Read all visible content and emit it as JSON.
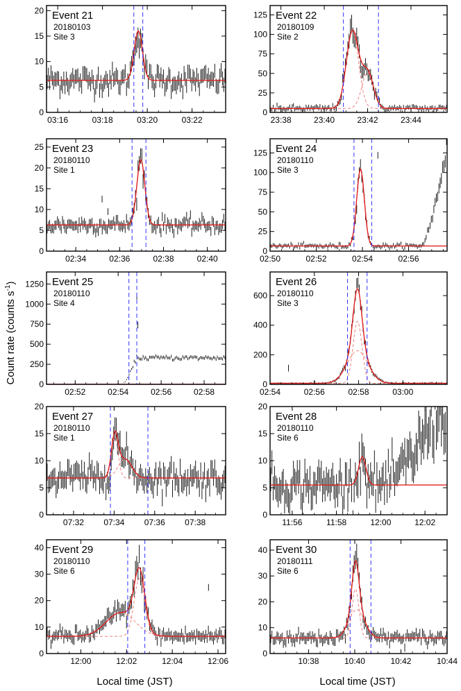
{
  "figure": {
    "ylabel": "Count rate (counts s",
    "ylabel_sup": "-1",
    "xlabel": "Local time (JST)"
  },
  "colors": {
    "data": "#000000",
    "fit": "#e02020",
    "component": "#f08080",
    "window": "#3030ff"
  },
  "chart_data": [
    {
      "type": "line",
      "event": "Event 21",
      "date": "20180103",
      "site": "Site 3",
      "xrange": [
        "03:15:30",
        "03:23:30"
      ],
      "xticks": [
        "03:16",
        "03:18",
        "03:20",
        "03:22"
      ],
      "ylim": [
        0,
        21
      ],
      "yticks": [
        0,
        5,
        10,
        15,
        20
      ],
      "baseline": 6.3,
      "noise": 1.4,
      "windows": [
        "03:19:24",
        "03:19:48"
      ],
      "peaks": [
        {
          "center": "03:19:36",
          "amplitude": 9.7,
          "sigma_s": 11
        }
      ],
      "outliers": []
    },
    {
      "type": "line",
      "event": "Event 22",
      "date": "20180109",
      "site": "Site 2",
      "xrange": [
        "23:37:30",
        "23:45:40"
      ],
      "xticks": [
        "23:38",
        "23:40",
        "23:42",
        "23:44"
      ],
      "ylim": [
        0,
        137
      ],
      "yticks": [
        0,
        25,
        50,
        75,
        100,
        125
      ],
      "baseline": 5,
      "noise": 2.5,
      "windows": [
        "23:40:53",
        "23:42:30"
      ],
      "peaks": [
        {
          "center": "23:41:18",
          "amplitude": 99,
          "sigma_s": 17
        },
        {
          "center": "23:42:00",
          "amplitude": 46,
          "sigma_s": 16
        }
      ],
      "outliers": []
    },
    {
      "type": "line",
      "event": "Event 23",
      "date": "20180110",
      "site": "Site 1",
      "xrange": [
        "02:32:40",
        "02:40:50"
      ],
      "xticks": [
        "02:34",
        "02:36",
        "02:38",
        "02:40"
      ],
      "ylim": [
        0,
        27
      ],
      "yticks": [
        0,
        5,
        10,
        15,
        20,
        25
      ],
      "baseline": 6.3,
      "noise": 1.1,
      "windows": [
        "02:36:34",
        "02:37:12"
      ],
      "peaks": [
        {
          "center": "02:36:58",
          "amplitude": 15.7,
          "sigma_s": 11
        }
      ],
      "outliers": [
        {
          "x": "02:35:12",
          "y": 12.5
        },
        {
          "x": "02:35:28",
          "y": 9.5
        }
      ]
    },
    {
      "type": "line",
      "event": "Event 24",
      "date": "20180110",
      "site": "Site 3",
      "xrange": [
        "02:50:00",
        "02:57:40"
      ],
      "xticks": [
        "02:50",
        "02:52",
        "02:54",
        "02:56"
      ],
      "ylim": [
        0,
        143
      ],
      "yticks": [
        0,
        25,
        50,
        75,
        100,
        125
      ],
      "baseline": 6.5,
      "noise": 2.0,
      "windows": [
        "02:53:38",
        "02:54:24"
      ],
      "peaks": [
        {
          "center": "02:53:55",
          "amplitude": 98,
          "sigma_s": 10
        }
      ],
      "outliers": [
        {
          "x": "02:54:40",
          "y": 122
        }
      ],
      "rise": {
        "start": "02:56:30",
        "end": "02:57:40",
        "to": 140
      }
    },
    {
      "type": "line",
      "event": "Event 25",
      "date": "20180110",
      "site": "Site 4",
      "xrange": [
        "02:50:40",
        "02:59:00"
      ],
      "xticks": [
        "02:52",
        "02:54",
        "02:56",
        "02:58"
      ],
      "ylim": [
        0,
        1400
      ],
      "yticks": [
        0,
        250,
        500,
        750,
        1000,
        1250
      ],
      "baseline": 2,
      "noise": 1.5,
      "windows": [
        "02:54:30",
        "02:54:52"
      ],
      "peaks": [],
      "outliers": [
        {
          "x": "02:54:55",
          "y": 740
        },
        {
          "x": "02:54:52",
          "y": 1100
        }
      ],
      "rise": {
        "start": "02:54:10",
        "end": "02:54:50",
        "to": 330
      }
    },
    {
      "type": "line",
      "event": "Event 26",
      "date": "20180110",
      "site": "Site 3",
      "xrange": [
        "02:54:00",
        "03:02:00"
      ],
      "xticks": [
        "02:54",
        "02:56",
        "02:58",
        "03:00"
      ],
      "ylim": [
        0,
        760
      ],
      "yticks": [
        0,
        200,
        400,
        600
      ],
      "baseline": 7,
      "noise": 4,
      "windows": [
        "02:57:30",
        "02:58:23"
      ],
      "peaks": [
        {
          "center": "02:57:57",
          "amplitude": 420,
          "sigma_s": 12
        },
        {
          "center": "02:57:57",
          "amplitude": 220,
          "sigma_s": 28
        }
      ],
      "outliers": [
        {
          "x": "02:54:50",
          "y": 110
        }
      ]
    },
    {
      "type": "line",
      "event": "Event 27",
      "date": "20180110",
      "site": "Site 1",
      "xrange": [
        "07:30:40",
        "07:39:30"
      ],
      "xticks": [
        "07:32",
        "07:34",
        "07:36",
        "07:38"
      ],
      "ylim": [
        0,
        20
      ],
      "yticks": [
        0,
        5,
        10,
        15,
        20
      ],
      "baseline": 6.8,
      "noise": 1.6,
      "windows": [
        "07:33:49",
        "07:35:40"
      ],
      "peaks": [
        {
          "center": "07:34:02",
          "amplitude": 7.5,
          "sigma_s": 10
        },
        {
          "center": "07:34:32",
          "amplitude": 3.5,
          "sigma_s": 20
        }
      ],
      "outliers": []
    },
    {
      "type": "line",
      "event": "Event 28",
      "date": "20180110",
      "site": "Site 6",
      "xrange": [
        "11:55:00",
        "12:03:00"
      ],
      "xticks": [
        "11:56",
        "11:58",
        "12:00",
        "12:02"
      ],
      "ylim": [
        0,
        20
      ],
      "yticks": [
        0,
        5,
        10,
        15,
        20
      ],
      "baseline": 5.5,
      "noise": 2.2,
      "windows": [],
      "peaks": [
        {
          "center": "11:59:10",
          "amplitude": 5.2,
          "sigma_s": 10
        }
      ],
      "outliers": [
        {
          "x": "12:03:00",
          "y": 13
        }
      ],
      "rise": {
        "start": "12:00:00",
        "end": "12:02:40",
        "to": 20
      }
    },
    {
      "type": "line",
      "event": "Event 29",
      "date": "20180110",
      "site": "Site 6",
      "xrange": [
        "11:58:30",
        "12:06:20"
      ],
      "xticks": [
        "12:00",
        "12:02",
        "12:04",
        "12:06"
      ],
      "ylim": [
        0,
        43
      ],
      "yticks": [
        0,
        10,
        20,
        30,
        40
      ],
      "baseline": 6.5,
      "noise": 1.7,
      "windows": [
        "12:02:03",
        "12:02:48"
      ],
      "peaks": [
        {
          "center": "12:02:34",
          "amplitude": 22,
          "sigma_s": 14
        },
        {
          "center": "12:01:45",
          "amplitude": 9,
          "sigma_s": 38
        }
      ],
      "outliers": [
        {
          "x": "12:05:35",
          "y": 25
        }
      ]
    },
    {
      "type": "line",
      "event": "Event 30",
      "date": "20180111",
      "site": "Site 6",
      "xrange": [
        "10:36:20",
        "10:44:00"
      ],
      "xticks": [
        "10:38",
        "10:40",
        "10:42",
        "10:44"
      ],
      "ylim": [
        0,
        44
      ],
      "yticks": [
        0,
        10,
        20,
        30,
        40
      ],
      "baseline": 6,
      "noise": 1.6,
      "windows": [
        "10:39:48",
        "10:40:42"
      ],
      "peaks": [
        {
          "center": "10:40:02",
          "amplitude": 19,
          "sigma_s": 9
        },
        {
          "center": "10:40:05",
          "amplitude": 11,
          "sigma_s": 20
        }
      ],
      "outliers": []
    }
  ]
}
